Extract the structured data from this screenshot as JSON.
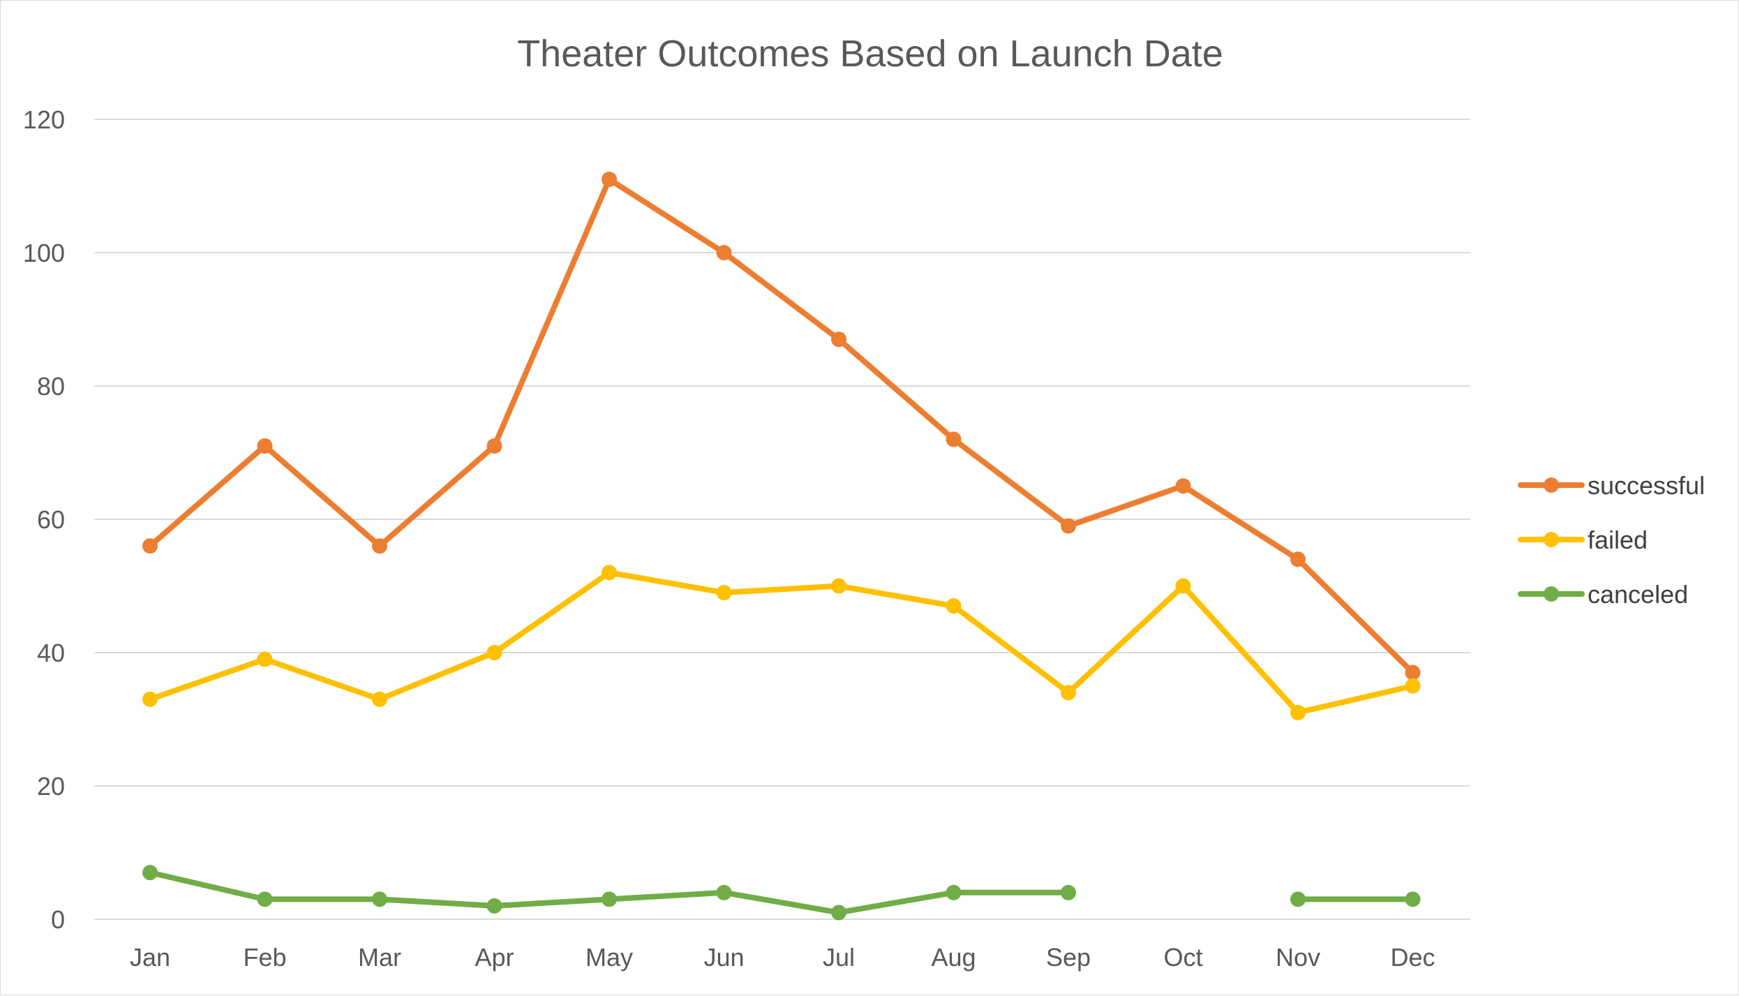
{
  "chart_data": {
    "type": "line",
    "title": "Theater Outcomes Based on Launch Date",
    "xlabel": "",
    "ylabel": "",
    "categories": [
      "Jan",
      "Feb",
      "Mar",
      "Apr",
      "May",
      "Jun",
      "Jul",
      "Aug",
      "Sep",
      "Oct",
      "Nov",
      "Dec"
    ],
    "ylim": [
      0,
      120
    ],
    "yticks": [
      0,
      20,
      40,
      60,
      80,
      100,
      120
    ],
    "grid": true,
    "legend_position": "right",
    "series": [
      {
        "name": "successful",
        "color": "#ed7d31",
        "values": [
          56,
          71,
          56,
          71,
          111,
          100,
          87,
          72,
          59,
          65,
          54,
          37
        ]
      },
      {
        "name": "failed",
        "color": "#ffc000",
        "values": [
          33,
          39,
          33,
          40,
          52,
          49,
          50,
          47,
          34,
          50,
          31,
          35
        ]
      },
      {
        "name": "canceled",
        "color": "#70ad47",
        "values": [
          7,
          3,
          3,
          2,
          3,
          4,
          1,
          4,
          4,
          null,
          3,
          3
        ]
      }
    ]
  }
}
